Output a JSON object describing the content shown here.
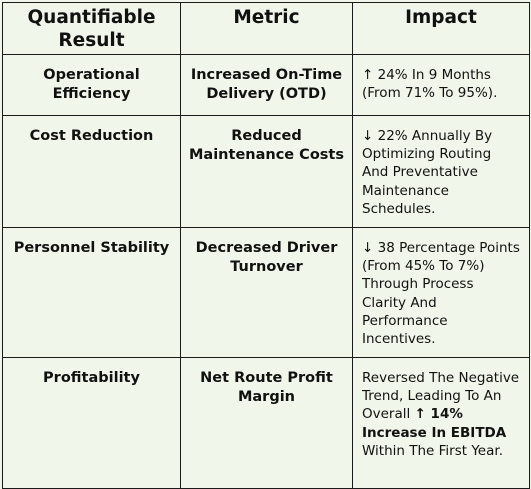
{
  "headers": {
    "result": "Quantifiable Result",
    "metric": "Metric",
    "impact": "Impact"
  },
  "rows": [
    {
      "result": "Operational Efficiency",
      "metric": "Increased On-Time Delivery (OTD)",
      "impact": "↑ 24% In 9 Months (From 71% To 95%)."
    },
    {
      "result": "Cost Reduction",
      "metric": "Reduced Maintenance Costs",
      "impact": "↓ 22% Annually By Optimizing Routing And Preventative Maintenance Schedules."
    },
    {
      "result": "Personnel Stability",
      "metric": "Decreased Driver Turnover",
      "impact": "↓ 38 Percentage Points (From 45% To 7%) Through Process Clarity And Performance Incentives."
    },
    {
      "result": "Profitability",
      "metric": "Net Route Profit Margin",
      "impact_pre": "Reversed The Negative Trend, Leading To An Overall",
      "impact_bold": "↑ 14% Increase In EBITDA",
      "impact_post": "Within The First Year."
    }
  ]
}
